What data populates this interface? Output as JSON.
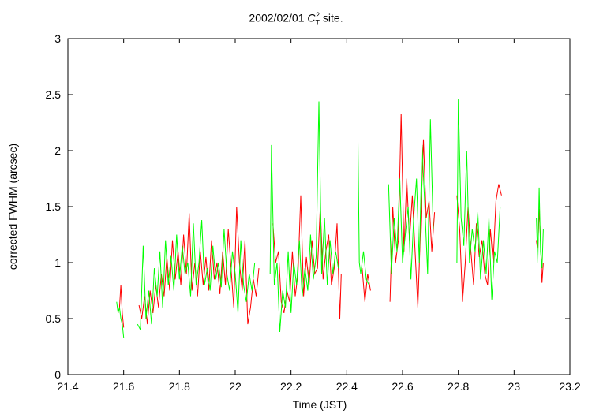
{
  "chart_data": {
    "type": "line",
    "title_main": "2002/02/01",
    "title_symbol": "C",
    "title_symbol_sub": "T",
    "title_symbol_sup": "2",
    "title_suffix": "site.",
    "xlabel": "Time (JST)",
    "ylabel": "corrected FWHM (arcsec)",
    "xlim": [
      21.4,
      23.2
    ],
    "ylim": [
      0,
      3
    ],
    "xticks": [
      "21.4",
      "21.6",
      "21.8",
      "22",
      "22.2",
      "22.4",
      "22.6",
      "22.8",
      "23",
      "23.2"
    ],
    "yticks": [
      "0",
      "0.5",
      "1",
      "1.5",
      "2",
      "2.5",
      "3"
    ],
    "grid": false,
    "series": [
      {
        "color": "#ff0000",
        "segments": [
          {
            "x": [
              21.58,
              21.585,
              21.59,
              21.595,
              21.6
            ],
            "y": [
              0.55,
              0.6,
              0.8,
              0.55,
              0.42
            ]
          },
          {
            "x": [
              21.655,
              21.665,
              21.675,
              21.685,
              21.695,
              21.705,
              21.715,
              21.725,
              21.735,
              21.745,
              21.755,
              21.765,
              21.775,
              21.785,
              21.795,
              21.805,
              21.815,
              21.825,
              21.835,
              21.845,
              21.855,
              21.865,
              21.875,
              21.885,
              21.895,
              21.905,
              21.915,
              21.925,
              21.935,
              21.945,
              21.955,
              21.965,
              21.975,
              21.985,
              21.995,
              22.005,
              22.015,
              22.025,
              22.035,
              22.045,
              22.055,
              22.065,
              22.075,
              22.085
            ],
            "y": [
              0.62,
              0.5,
              0.7,
              0.45,
              0.75,
              0.55,
              0.8,
              0.6,
              0.9,
              0.7,
              1.05,
              0.75,
              1.2,
              0.85,
              1.1,
              0.8,
              1.25,
              0.9,
              1.44,
              0.75,
              1.0,
              0.7,
              1.1,
              0.8,
              1.05,
              0.75,
              1.2,
              0.85,
              1.0,
              0.72,
              1.1,
              0.8,
              1.3,
              0.95,
              0.6,
              1.5,
              1.0,
              0.75,
              1.2,
              0.45,
              0.6,
              0.85,
              0.7,
              0.95
            ]
          },
          {
            "x": [
              22.135,
              22.145,
              22.155,
              22.165,
              22.175,
              22.185,
              22.195,
              22.205,
              22.215,
              22.225,
              22.235,
              22.245,
              22.255,
              22.265,
              22.275,
              22.285,
              22.295,
              22.305,
              22.315,
              22.325,
              22.335,
              22.345,
              22.355,
              22.365,
              22.375,
              22.38
            ],
            "y": [
              1.35,
              1.0,
              1.1,
              0.65,
              0.55,
              0.75,
              0.65,
              1.1,
              0.7,
              0.9,
              1.6,
              0.7,
              1.05,
              0.8,
              1.2,
              0.9,
              0.95,
              1.5,
              0.85,
              1.1,
              1.25,
              0.8,
              0.95,
              1.35,
              0.5,
              0.9
            ]
          },
          {
            "x": [
              22.455,
              22.465,
              22.475,
              22.485
            ],
            "y": [
              0.95,
              0.65,
              0.9,
              0.75
            ]
          },
          {
            "x": [
              22.555,
              22.565,
              22.575,
              22.585,
              22.595,
              22.605,
              22.615,
              22.625,
              22.635,
              22.645,
              22.655,
              22.665,
              22.675,
              22.685,
              22.695,
              22.705,
              22.715
            ],
            "y": [
              0.65,
              1.5,
              1.0,
              1.2,
              2.33,
              1.1,
              1.75,
              1.2,
              1.6,
              1.1,
              0.6,
              1.35,
              2.1,
              1.4,
              1.55,
              1.1,
              1.45
            ]
          },
          {
            "x": [
              22.795,
              22.805,
              22.815,
              22.825,
              22.835,
              22.845,
              22.855,
              22.865,
              22.875,
              22.885,
              22.895,
              22.905,
              22.915,
              22.925,
              22.935,
              22.945,
              22.955
            ],
            "y": [
              1.6,
              1.3,
              0.65,
              1.0,
              1.5,
              1.1,
              0.8,
              1.35,
              1.05,
              1.2,
              0.9,
              0.8,
              1.3,
              1.0,
              1.55,
              1.7,
              1.6
            ]
          },
          {
            "x": [
              23.08,
              23.085,
              23.09,
              23.095,
              23.1,
              23.105
            ],
            "y": [
              1.2,
              1.1,
              1.48,
              1.2,
              0.82,
              1.0
            ]
          }
        ]
      },
      {
        "color": "#00ff00",
        "segments": [
          {
            "x": [
              21.575,
              21.58,
              21.585,
              21.59,
              21.595,
              21.6
            ],
            "y": [
              0.65,
              0.55,
              0.6,
              0.5,
              0.45,
              0.33
            ]
          },
          {
            "x": [
              21.65,
              21.66,
              21.67,
              21.68,
              21.69,
              21.7,
              21.71,
              21.72,
              21.73,
              21.74,
              21.75,
              21.76,
              21.77,
              21.78,
              21.79,
              21.8,
              21.81,
              21.82,
              21.83,
              21.84,
              21.85,
              21.86,
              21.87,
              21.88,
              21.89,
              21.9,
              21.91,
              21.92,
              21.93,
              21.94,
              21.95,
              21.96,
              21.97,
              21.98,
              21.99,
              22.0,
              22.01,
              22.02,
              22.03,
              22.04,
              22.05,
              22.06,
              22.07
            ],
            "y": [
              0.45,
              0.4,
              1.15,
              0.5,
              0.75,
              0.45,
              0.95,
              0.7,
              1.1,
              0.6,
              1.2,
              0.8,
              1.06,
              0.75,
              1.25,
              0.85,
              1.15,
              0.9,
              1.0,
              0.7,
              1.35,
              0.8,
              1.0,
              1.38,
              0.8,
              0.95,
              0.75,
              1.15,
              0.85,
              1.0,
              0.78,
              1.3,
              0.9,
              0.75,
              1.1,
              0.9,
              0.55,
              1.2,
              0.8,
              0.65,
              0.9,
              0.75,
              1.0
            ]
          },
          {
            "x": [
              22.125,
              22.13,
              22.14,
              22.15,
              22.16,
              22.17,
              22.18,
              22.19,
              22.2,
              22.21,
              22.22,
              22.23,
              22.24,
              22.25,
              22.26,
              22.27,
              22.28,
              22.29,
              22.3,
              22.31,
              22.32,
              22.33,
              22.34,
              22.35,
              22.36,
              22.37
            ],
            "y": [
              0.9,
              2.05,
              0.8,
              1.0,
              0.38,
              0.75,
              0.6,
              1.1,
              0.55,
              1.0,
              0.8,
              1.2,
              0.7,
              0.95,
              0.75,
              1.25,
              0.85,
              1.05,
              2.44,
              0.9,
              1.4,
              0.8,
              1.2,
              0.9,
              1.1,
              0.95
            ]
          },
          {
            "x": [
              22.44,
              22.445,
              22.45,
              22.46,
              22.47,
              22.48
            ],
            "y": [
              2.08,
              1.0,
              0.9,
              1.1,
              0.85,
              0.8
            ]
          },
          {
            "x": [
              22.55,
              22.56,
              22.57,
              22.58,
              22.59,
              22.6,
              22.61,
              22.62,
              22.63,
              22.64,
              22.65,
              22.66,
              22.67,
              22.68,
              22.69,
              22.7,
              22.71
            ],
            "y": [
              1.7,
              0.9,
              1.4,
              1.1,
              1.75,
              1.0,
              1.25,
              1.5,
              0.85,
              1.4,
              1.75,
              1.0,
              2.05,
              1.5,
              0.9,
              2.28,
              1.3
            ]
          },
          {
            "x": [
              22.795,
              22.8,
              22.81,
              22.82,
              22.83,
              22.84,
              22.85,
              22.86,
              22.87,
              22.88,
              22.89,
              22.9,
              22.91,
              22.92,
              22.93,
              22.94,
              22.95
            ],
            "y": [
              1.0,
              2.46,
              1.4,
              1.15,
              2.0,
              1.0,
              1.3,
              1.1,
              1.45,
              0.85,
              1.2,
              0.9,
              1.4,
              0.67,
              1.1,
              1.0,
              1.5
            ]
          },
          {
            "x": [
              23.08,
              23.085,
              23.09,
              23.095,
              23.1,
              23.105
            ],
            "y": [
              1.4,
              1.0,
              1.67,
              1.1,
              0.95,
              1.3
            ]
          }
        ]
      }
    ]
  }
}
